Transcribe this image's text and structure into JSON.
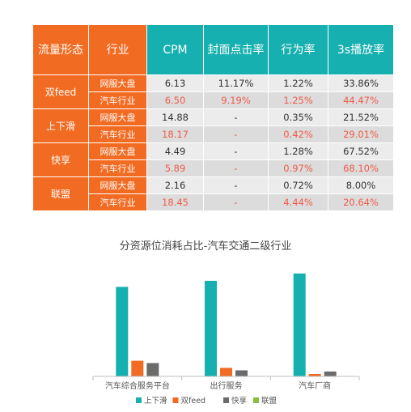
{
  "table": {
    "headers": [
      "流量形态",
      "行业",
      "CPM",
      "封面点击率",
      "行为率",
      "3s播放率"
    ],
    "groups": [
      {
        "platform": "双feed",
        "rows": [
          {
            "industry": "网服大盘",
            "cpm": "6.13",
            "ctr": "11.17%",
            "action": "1.22%",
            "play3s": "33.86%"
          },
          {
            "industry": "汽车行业",
            "cpm": "6.50",
            "ctr": "9.19%",
            "action": "1.25%",
            "play3s": "44.47%"
          }
        ]
      },
      {
        "platform": "上下滑",
        "rows": [
          {
            "industry": "网服大盘",
            "cpm": "14.88",
            "ctr": "-",
            "action": "0.35%",
            "play3s": "21.52%"
          },
          {
            "industry": "汽车行业",
            "cpm": "18.17",
            "ctr": "-",
            "action": "0.42%",
            "play3s": "29.01%"
          }
        ]
      },
      {
        "platform": "快享",
        "rows": [
          {
            "industry": "网服大盘",
            "cpm": "4.49",
            "ctr": "-",
            "action": "1.28%",
            "play3s": "67.52%"
          },
          {
            "industry": "汽车行业",
            "cpm": "5.89",
            "ctr": "-",
            "action": "0.97%",
            "play3s": "68.10%"
          }
        ]
      },
      {
        "platform": "联盟",
        "rows": [
          {
            "industry": "网服大盘",
            "cpm": "2.16",
            "ctr": "-",
            "action": "0.72%",
            "play3s": "8.00%"
          },
          {
            "industry": "汽车行业",
            "cpm": "18.45",
            "ctr": "-",
            "action": "4.44%",
            "play3s": "20.64%"
          }
        ]
      }
    ]
  },
  "colors": {
    "orange": "#f26b22",
    "teal": "#17b0b0",
    "gray": "#6b6b6b",
    "green": "#8bbd3c",
    "highlight_red": "#f05a4a"
  },
  "chart_data": {
    "type": "bar",
    "title": "分资源位消耗占比-汽车交通二级行业",
    "categories": [
      "汽车综合服务平台",
      "出行服务",
      "汽车厂商"
    ],
    "series": [
      {
        "name": "上下滑",
        "color": "#17b0b0",
        "values": [
          0.74,
          0.79,
          0.85
        ]
      },
      {
        "name": "双feed",
        "color": "#f26b22",
        "values": [
          0.13,
          0.07,
          0.02
        ]
      },
      {
        "name": "快享",
        "color": "#6b6b6b",
        "values": [
          0.11,
          0.05,
          0.04
        ]
      },
      {
        "name": "联盟",
        "color": "#8bbd3c",
        "values": [
          0.0,
          0.0,
          0.0
        ]
      }
    ],
    "ylim": [
      0,
      0.95
    ],
    "grid": false,
    "legend": "bottom"
  }
}
